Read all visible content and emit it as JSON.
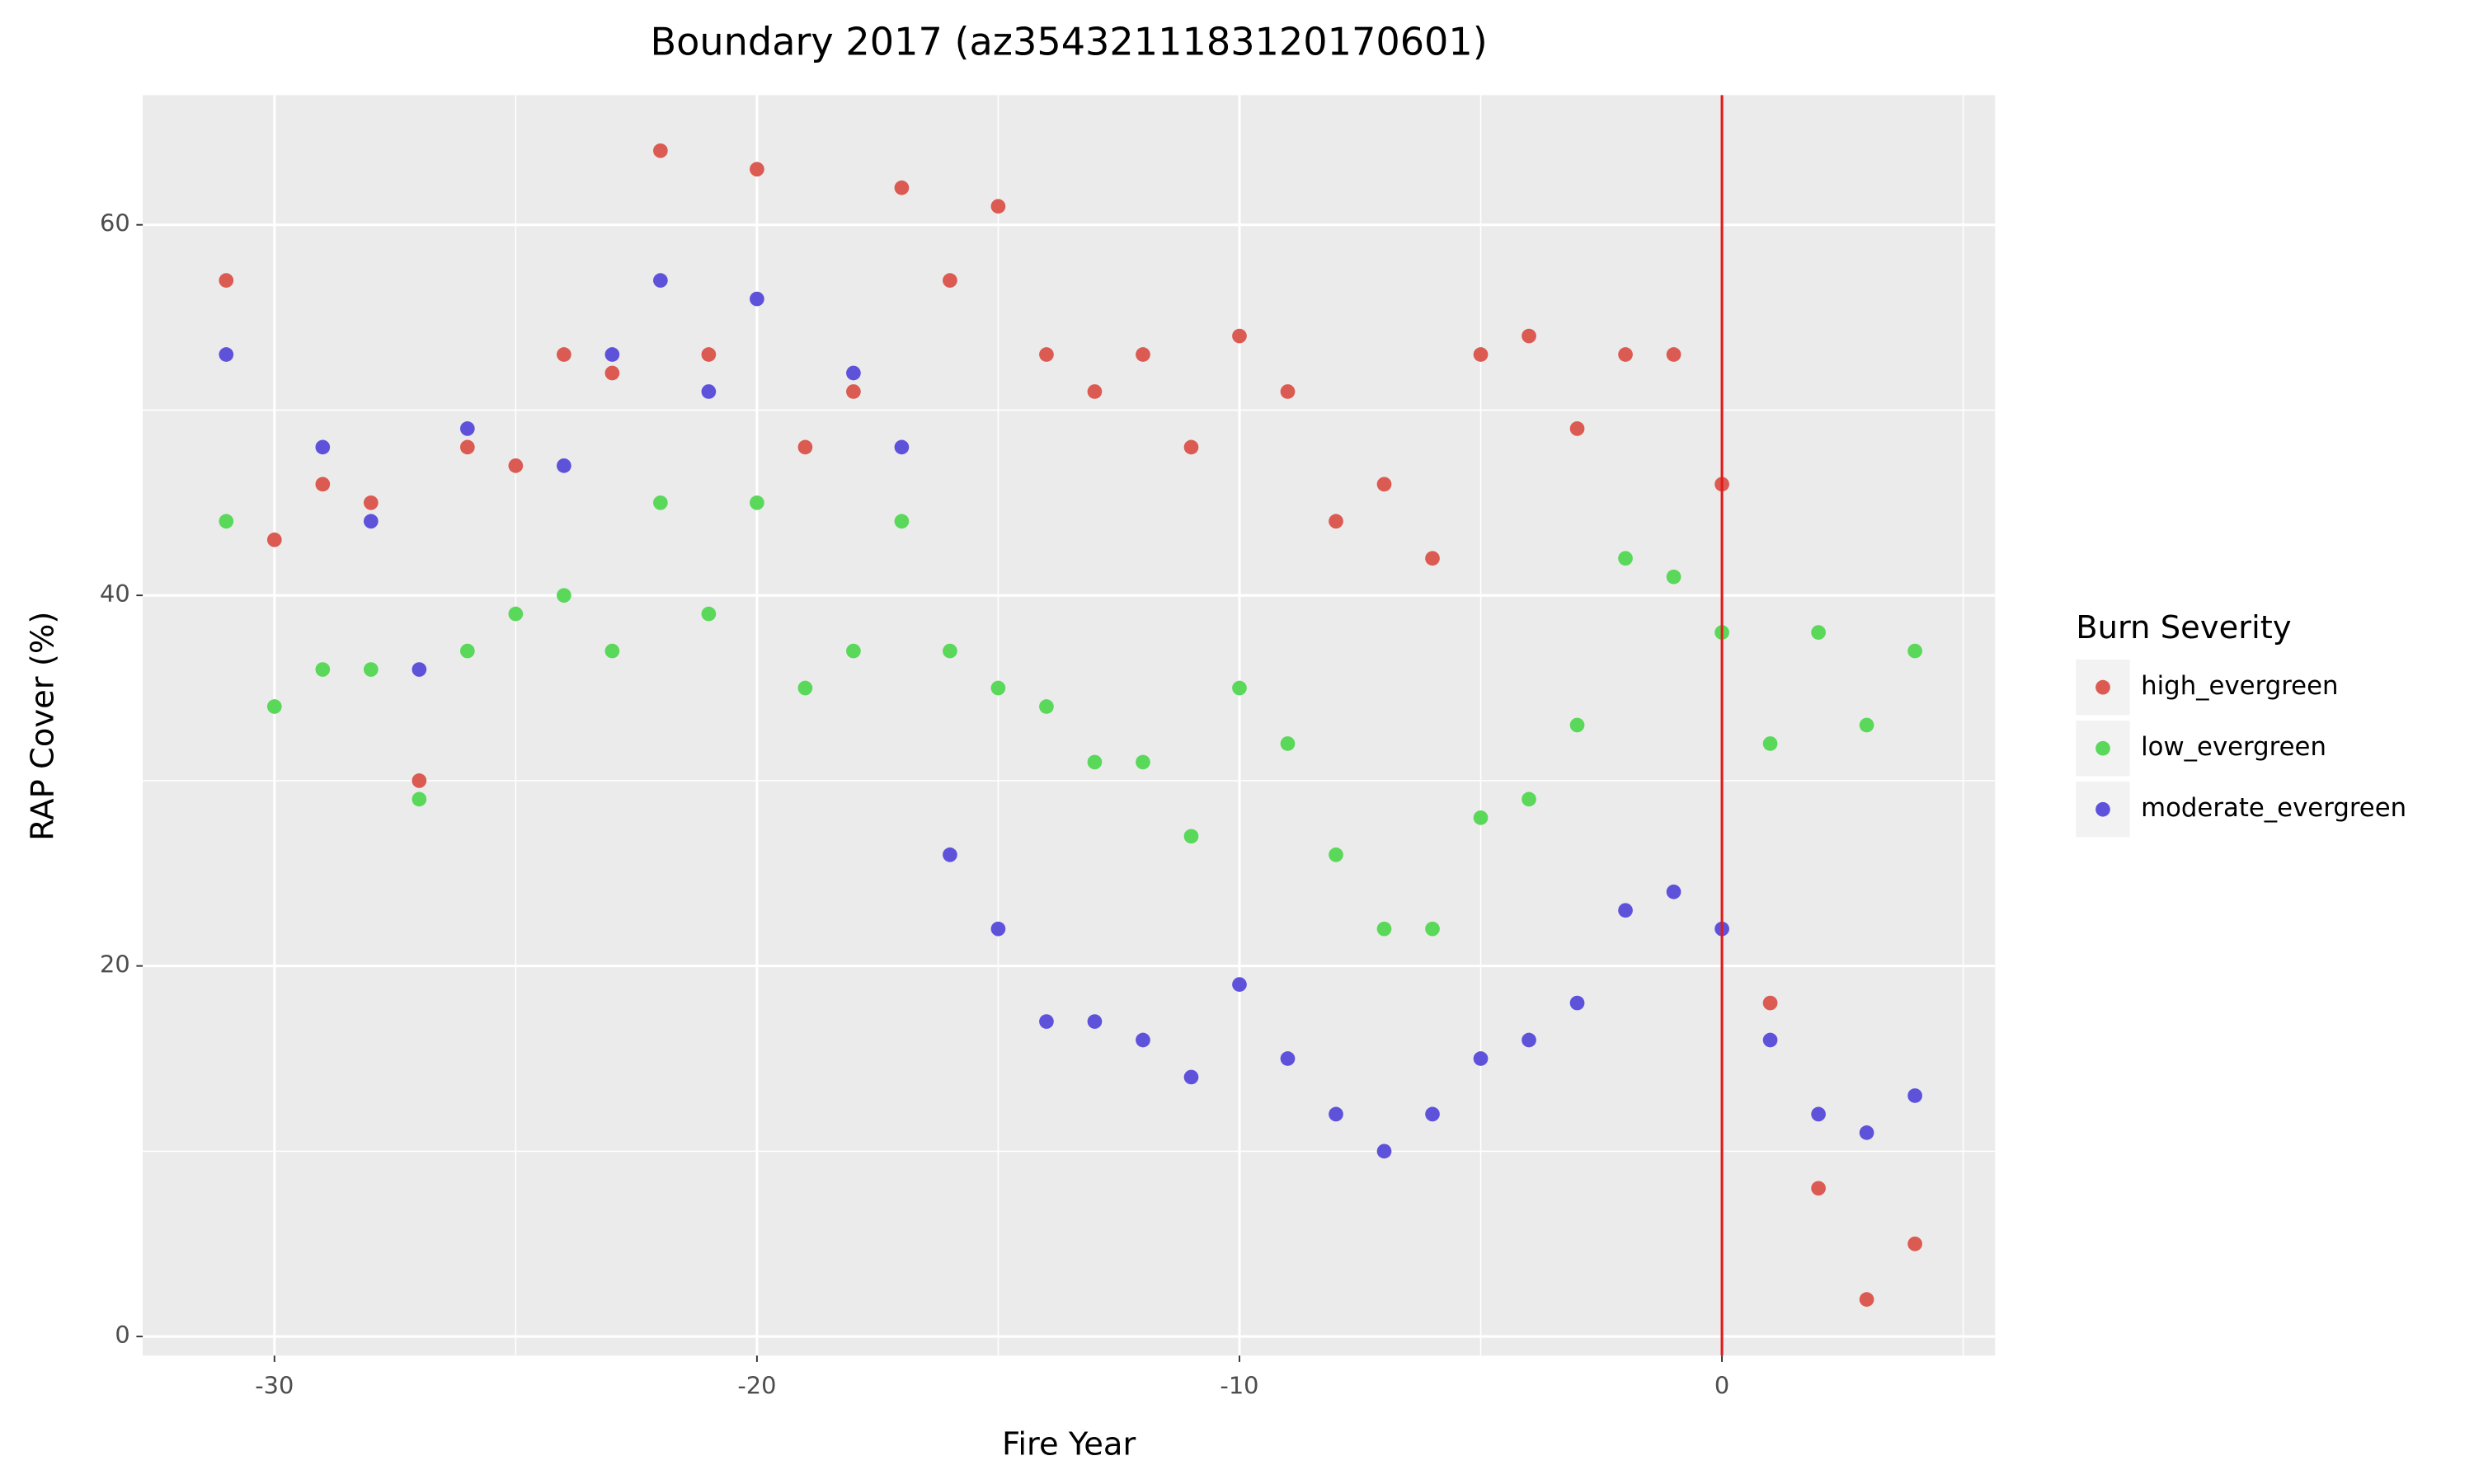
{
  "chart_data": {
    "type": "scatter",
    "title": "Boundary 2017 (az3543211183120170601)",
    "x_label": "Fire Year",
    "y_label": "RAP Cover (%)",
    "legend_title": "Burn Severity",
    "legend": "right",
    "grid": true,
    "x": [
      -31,
      -30,
      -29,
      -28,
      -27,
      -26,
      -25,
      -24,
      -23,
      -22,
      -21,
      -20,
      -19,
      -18,
      -17,
      -16,
      -15,
      -14,
      -13,
      -12,
      -11,
      -10,
      -9,
      -8,
      -7,
      -6,
      -5,
      -4,
      -3,
      -2,
      -1,
      0,
      1,
      2,
      3,
      4
    ],
    "series": [
      {
        "name": "high_evergreen",
        "color": "#db5a52",
        "values": [
          57,
          43,
          46,
          45,
          30,
          48,
          47,
          53,
          52,
          64,
          53,
          63,
          48,
          51,
          62,
          57,
          61,
          53,
          51,
          53,
          48,
          54,
          51,
          44,
          46,
          42,
          53,
          54,
          49,
          53,
          53,
          46,
          18,
          8,
          2,
          5
        ]
      },
      {
        "name": "low_evergreen",
        "color": "#5ad85a",
        "values": [
          44,
          34,
          36,
          36,
          29,
          37,
          39,
          40,
          37,
          45,
          39,
          45,
          35,
          37,
          44,
          37,
          35,
          34,
          31,
          31,
          27,
          35,
          32,
          26,
          22,
          22,
          28,
          29,
          33,
          42,
          41,
          38,
          32,
          38,
          33,
          37
        ]
      },
      {
        "name": "moderate_evergreen",
        "color": "#5e52db",
        "values": [
          53,
          null,
          48,
          44,
          36,
          49,
          null,
          47,
          53,
          57,
          51,
          56,
          null,
          52,
          48,
          26,
          22,
          17,
          17,
          16,
          14,
          19,
          15,
          12,
          10,
          12,
          15,
          16,
          18,
          23,
          24,
          22,
          16,
          12,
          11,
          13
        ]
      }
    ],
    "vline": {
      "x": 0,
      "color": "#e31a1c"
    },
    "xlim": [
      -32.73,
      5.66
    ],
    "ylim": [
      -1.03,
      67.0
    ],
    "xticks": [
      -30,
      -20,
      -10,
      0
    ],
    "yticks": [
      0,
      20,
      40,
      60
    ],
    "minor_xticks": [
      -25,
      -15,
      -5,
      5
    ],
    "minor_yticks": [
      10,
      30,
      50
    ]
  }
}
